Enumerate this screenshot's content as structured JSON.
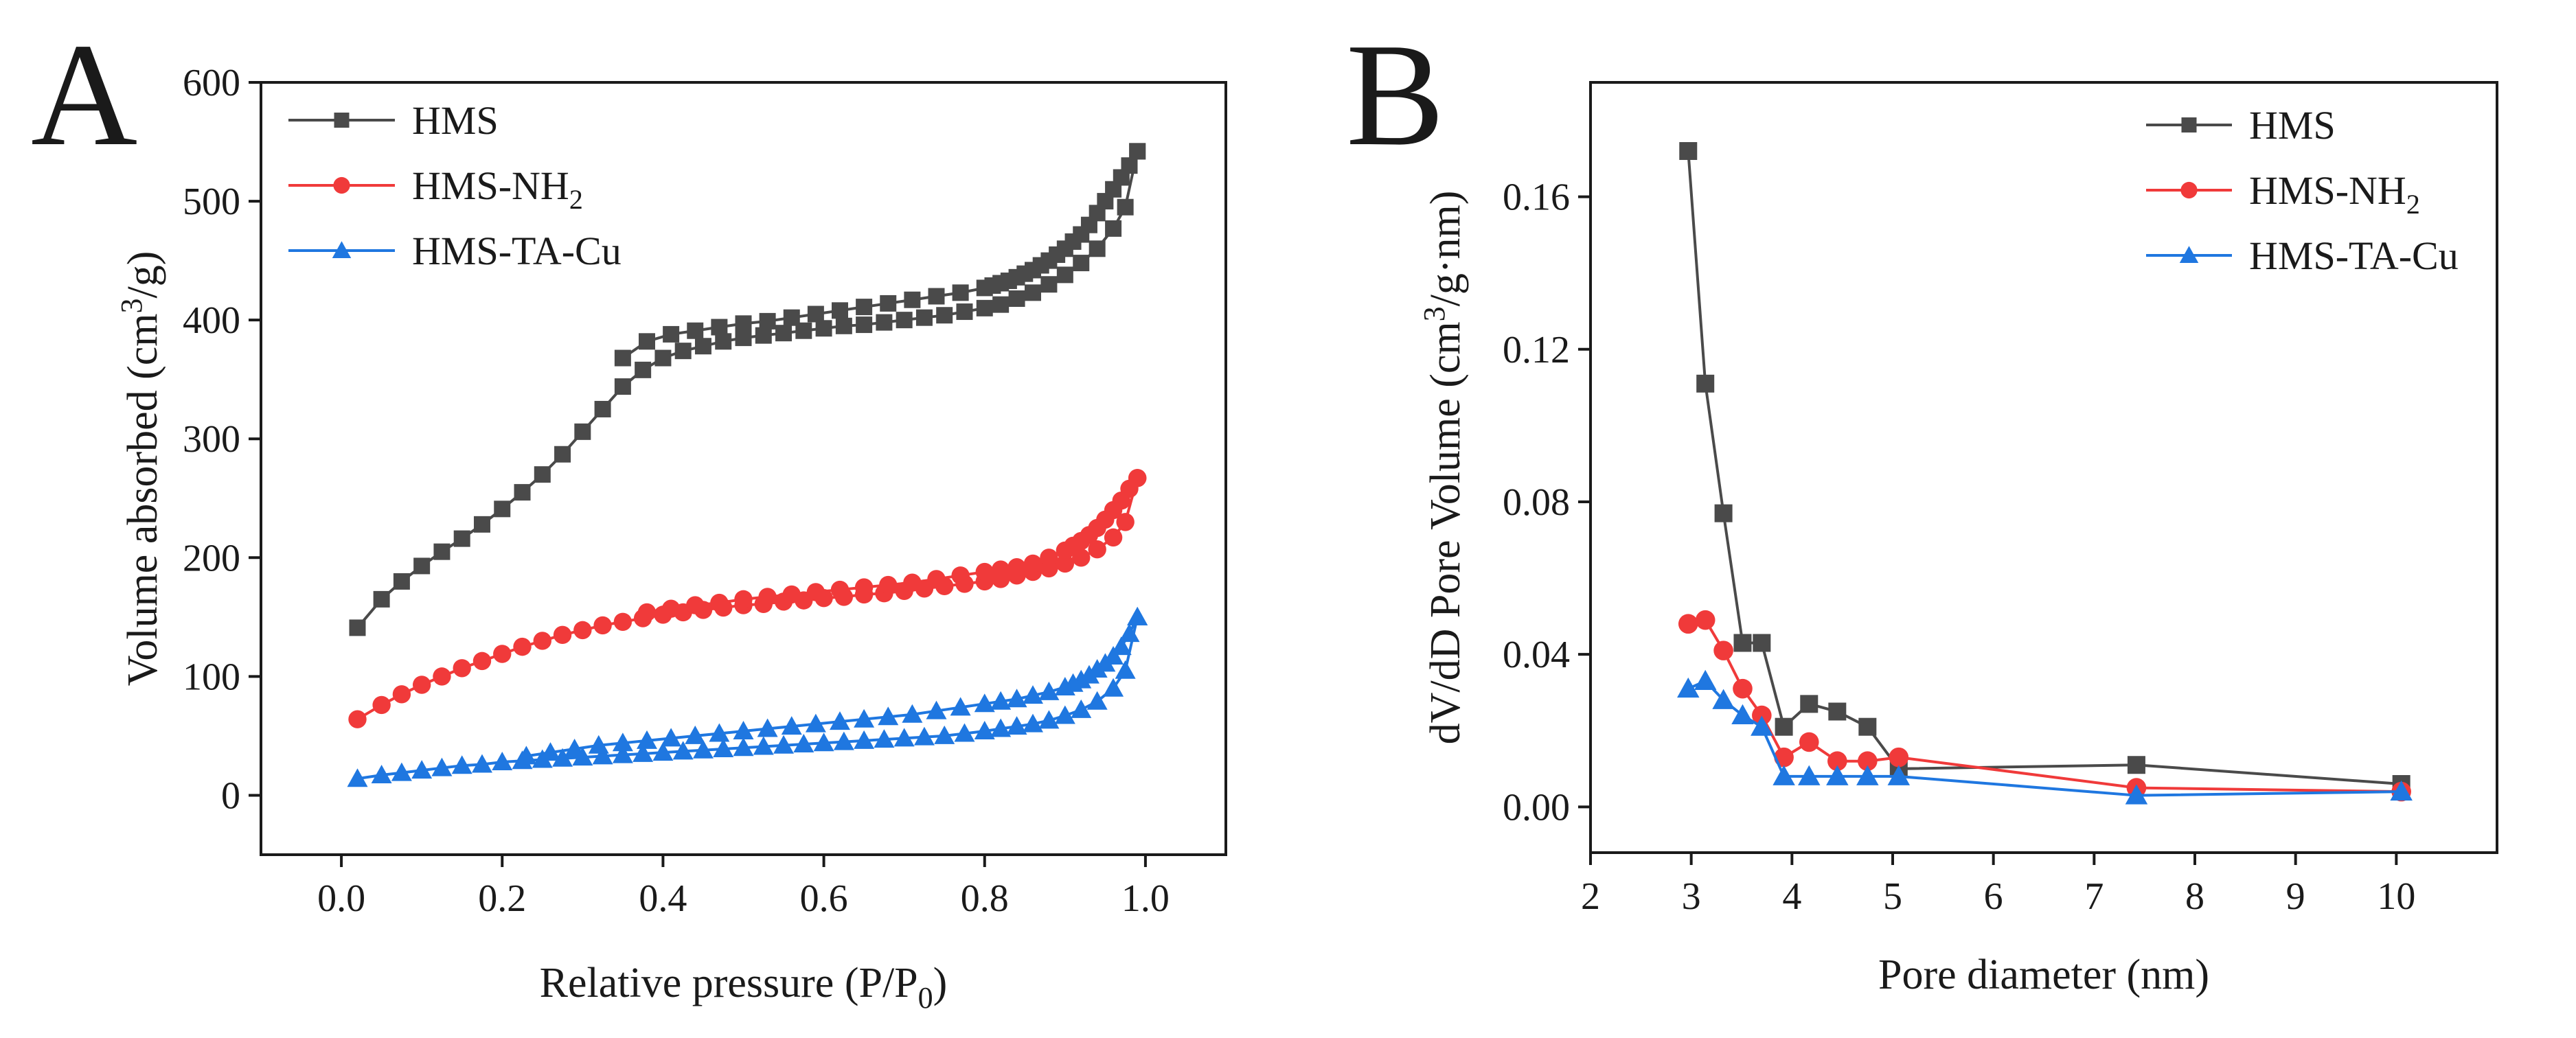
{
  "figure": {
    "panels": [
      "A",
      "B"
    ]
  },
  "colors": {
    "HMS": "#4a4a4a",
    "HMS-NH2": "#f03a3a",
    "HMS-TA-Cu": "#1f77e0",
    "axis": "#1a1a1a"
  },
  "chart_data": [
    {
      "type": "scatter",
      "panel": "A",
      "title": "",
      "xlabel_main": "Relative pressure (P/P",
      "xlabel_sub": "0",
      "xlabel_end": ")",
      "ylabel_main": "Volume absorbed (cm",
      "ylabel_sup": "3",
      "ylabel_end": "/g)",
      "xlim": [
        -0.1,
        1.1
      ],
      "ylim": [
        -50,
        600
      ],
      "xticks": [
        0.0,
        0.2,
        0.4,
        0.6,
        0.8,
        1.0
      ],
      "xtick_labels": [
        "0.0",
        "0.2",
        "0.4",
        "0.6",
        "0.8",
        "1.0"
      ],
      "yticks": [
        0,
        100,
        200,
        300,
        400,
        500,
        600
      ],
      "ytick_labels": [
        "0",
        "100",
        "200",
        "300",
        "400",
        "500",
        "600"
      ],
      "legend_position": "top-left",
      "series": [
        {
          "name": "HMS",
          "label_main": "HMS",
          "label_sub": "",
          "label_end": "",
          "marker": "square",
          "color": "#4a4a4a",
          "adsorption": {
            "x": [
              0.02,
              0.05,
              0.075,
              0.1,
              0.125,
              0.15,
              0.175,
              0.2,
              0.225,
              0.25,
              0.275,
              0.3,
              0.325,
              0.35,
              0.375,
              0.4,
              0.425,
              0.45,
              0.475,
              0.5,
              0.525,
              0.55,
              0.575,
              0.6,
              0.625,
              0.65,
              0.675,
              0.7,
              0.725,
              0.75,
              0.775,
              0.8,
              0.82,
              0.84,
              0.86,
              0.88,
              0.9,
              0.92,
              0.94,
              0.96,
              0.975,
              0.99
            ],
            "y": [
              141,
              165,
              180,
              193,
              205,
              216,
              228,
              241,
              255,
              270,
              287,
              306,
              325,
              344,
              358,
              368,
              374,
              378,
              382,
              385,
              387,
              389,
              391,
              393,
              395,
              396,
              398,
              400,
              402,
              404,
              407,
              410,
              413,
              418,
              423,
              430,
              438,
              448,
              460,
              477,
              495,
              542
            ]
          },
          "desorption": {
            "x": [
              0.99,
              0.98,
              0.97,
              0.96,
              0.95,
              0.94,
              0.93,
              0.92,
              0.91,
              0.9,
              0.89,
              0.88,
              0.87,
              0.86,
              0.85,
              0.84,
              0.83,
              0.82,
              0.81,
              0.8,
              0.77,
              0.74,
              0.71,
              0.68,
              0.65,
              0.62,
              0.59,
              0.56,
              0.53,
              0.5,
              0.47,
              0.44,
              0.41,
              0.38,
              0.35
            ],
            "y": [
              542,
              530,
              520,
              510,
              500,
              490,
              480,
              472,
              466,
              460,
              455,
              450,
              446,
              442,
              439,
              436,
              433,
              431,
              429,
              427,
              423,
              420,
              417,
              414,
              411,
              408,
              405,
              402,
              399,
              397,
              394,
              391,
              388,
              382,
              368
            ]
          }
        },
        {
          "name": "HMS-NH2",
          "label_main": "HMS-NH",
          "label_sub": "2",
          "label_end": "",
          "marker": "circle",
          "color": "#f03a3a",
          "adsorption": {
            "x": [
              0.02,
              0.05,
              0.075,
              0.1,
              0.125,
              0.15,
              0.175,
              0.2,
              0.225,
              0.25,
              0.275,
              0.3,
              0.325,
              0.35,
              0.375,
              0.4,
              0.425,
              0.45,
              0.475,
              0.5,
              0.525,
              0.55,
              0.575,
              0.6,
              0.625,
              0.65,
              0.675,
              0.7,
              0.725,
              0.75,
              0.775,
              0.8,
              0.82,
              0.84,
              0.86,
              0.88,
              0.9,
              0.92,
              0.94,
              0.96,
              0.975,
              0.99
            ],
            "y": [
              64,
              76,
              85,
              93,
              100,
              107,
              113,
              119,
              125,
              130,
              135,
              139,
              143,
              146,
              149,
              152,
              154,
              156,
              158,
              160,
              161,
              163,
              164,
              166,
              167,
              169,
              170,
              172,
              174,
              176,
              178,
              180,
              182,
              185,
              188,
              191,
              195,
              200,
              207,
              217,
              230,
              267
            ]
          },
          "desorption": {
            "x": [
              0.99,
              0.98,
              0.97,
              0.96,
              0.95,
              0.94,
              0.93,
              0.92,
              0.91,
              0.9,
              0.88,
              0.86,
              0.84,
              0.82,
              0.8,
              0.77,
              0.74,
              0.71,
              0.68,
              0.65,
              0.62,
              0.59,
              0.56,
              0.53,
              0.5,
              0.47,
              0.44,
              0.41,
              0.38
            ],
            "y": [
              267,
              258,
              248,
              240,
              232,
              225,
              219,
              214,
              210,
              206,
              200,
              195,
              192,
              190,
              188,
              185,
              182,
              179,
              177,
              175,
              173,
              171,
              169,
              167,
              165,
              162,
              160,
              157,
              154
            ]
          }
        },
        {
          "name": "HMS-TA-Cu",
          "label_main": "HMS-TA-Cu",
          "label_sub": "",
          "label_end": "",
          "marker": "triangle",
          "color": "#1f77e0",
          "adsorption": {
            "x": [
              0.02,
              0.05,
              0.075,
              0.1,
              0.125,
              0.15,
              0.175,
              0.2,
              0.225,
              0.25,
              0.275,
              0.3,
              0.325,
              0.35,
              0.375,
              0.4,
              0.425,
              0.45,
              0.475,
              0.5,
              0.525,
              0.55,
              0.575,
              0.6,
              0.625,
              0.65,
              0.675,
              0.7,
              0.725,
              0.75,
              0.775,
              0.8,
              0.82,
              0.84,
              0.86,
              0.88,
              0.9,
              0.92,
              0.94,
              0.96,
              0.975,
              0.99
            ],
            "y": [
              14,
              17,
              19,
              21,
              23,
              25,
              26,
              28,
              29,
              30,
              31,
              32,
              33,
              34,
              35,
              36,
              37,
              38,
              39,
              40,
              41,
              42,
              43,
              44,
              45,
              46,
              47,
              48,
              49,
              50,
              52,
              54,
              56,
              58,
              60,
              63,
              67,
              72,
              79,
              90,
              105,
              150
            ]
          },
          "desorption": {
            "x": [
              0.99,
              0.98,
              0.97,
              0.96,
              0.95,
              0.94,
              0.93,
              0.92,
              0.91,
              0.9,
              0.88,
              0.86,
              0.84,
              0.82,
              0.8,
              0.77,
              0.74,
              0.71,
              0.68,
              0.65,
              0.62,
              0.59,
              0.56,
              0.53,
              0.5,
              0.47,
              0.44,
              0.41,
              0.38,
              0.35,
              0.32,
              0.29,
              0.26,
              0.23
            ],
            "y": [
              150,
              136,
              125,
              117,
              111,
              106,
              101,
              97,
              94,
              91,
              87,
              84,
              81,
              79,
              77,
              74,
              71,
              68,
              66,
              64,
              62,
              60,
              58,
              56,
              54,
              52,
              50,
              48,
              46,
              44,
              42,
              39,
              36,
              33
            ]
          }
        }
      ]
    },
    {
      "type": "line",
      "panel": "B",
      "title": "",
      "xlabel": "Pore diameter (nm)",
      "ylabel_main": "dV/dD Pore Volume (cm",
      "ylabel_sup": "3",
      "ylabel_end": "/g·nm)",
      "xlim": [
        2,
        11
      ],
      "ylim": [
        -0.012,
        0.19
      ],
      "xticks": [
        2,
        3,
        4,
        5,
        6,
        7,
        8,
        9,
        10
      ],
      "xtick_labels": [
        "2",
        "3",
        "4",
        "5",
        "6",
        "7",
        "8",
        "9",
        "10"
      ],
      "yticks": [
        0.0,
        0.04,
        0.08,
        0.12,
        0.16
      ],
      "ytick_labels": [
        "0.00",
        "0.04",
        "0.08",
        "0.12",
        "0.16"
      ],
      "legend_position": "top-right",
      "series": [
        {
          "name": "HMS",
          "label_main": "HMS",
          "label_sub": "",
          "label_end": "",
          "marker": "square",
          "color": "#4a4a4a",
          "x": [
            2.97,
            3.14,
            3.32,
            3.51,
            3.7,
            3.92,
            4.17,
            4.45,
            4.75,
            5.06,
            7.42,
            10.05
          ],
          "y": [
            0.172,
            0.111,
            0.077,
            0.043,
            0.043,
            0.021,
            0.027,
            0.025,
            0.021,
            0.01,
            0.011,
            0.006
          ]
        },
        {
          "name": "HMS-NH2",
          "label_main": "HMS-NH",
          "label_sub": "2",
          "label_end": "",
          "marker": "circle",
          "color": "#f03a3a",
          "x": [
            2.97,
            3.14,
            3.32,
            3.51,
            3.7,
            3.92,
            4.17,
            4.45,
            4.75,
            5.06,
            7.42,
            10.05
          ],
          "y": [
            0.048,
            0.049,
            0.041,
            0.031,
            0.024,
            0.013,
            0.017,
            0.012,
            0.012,
            0.013,
            0.005,
            0.004
          ]
        },
        {
          "name": "HMS-TA-Cu",
          "label_main": "HMS-TA-Cu",
          "label_sub": "",
          "label_end": "",
          "marker": "triangle",
          "color": "#1f77e0",
          "x": [
            2.97,
            3.14,
            3.32,
            3.51,
            3.7,
            3.92,
            4.17,
            4.45,
            4.75,
            5.06,
            7.42,
            10.05
          ],
          "y": [
            0.031,
            0.033,
            0.028,
            0.024,
            0.021,
            0.008,
            0.008,
            0.008,
            0.008,
            0.008,
            0.003,
            0.004
          ]
        }
      ]
    }
  ]
}
